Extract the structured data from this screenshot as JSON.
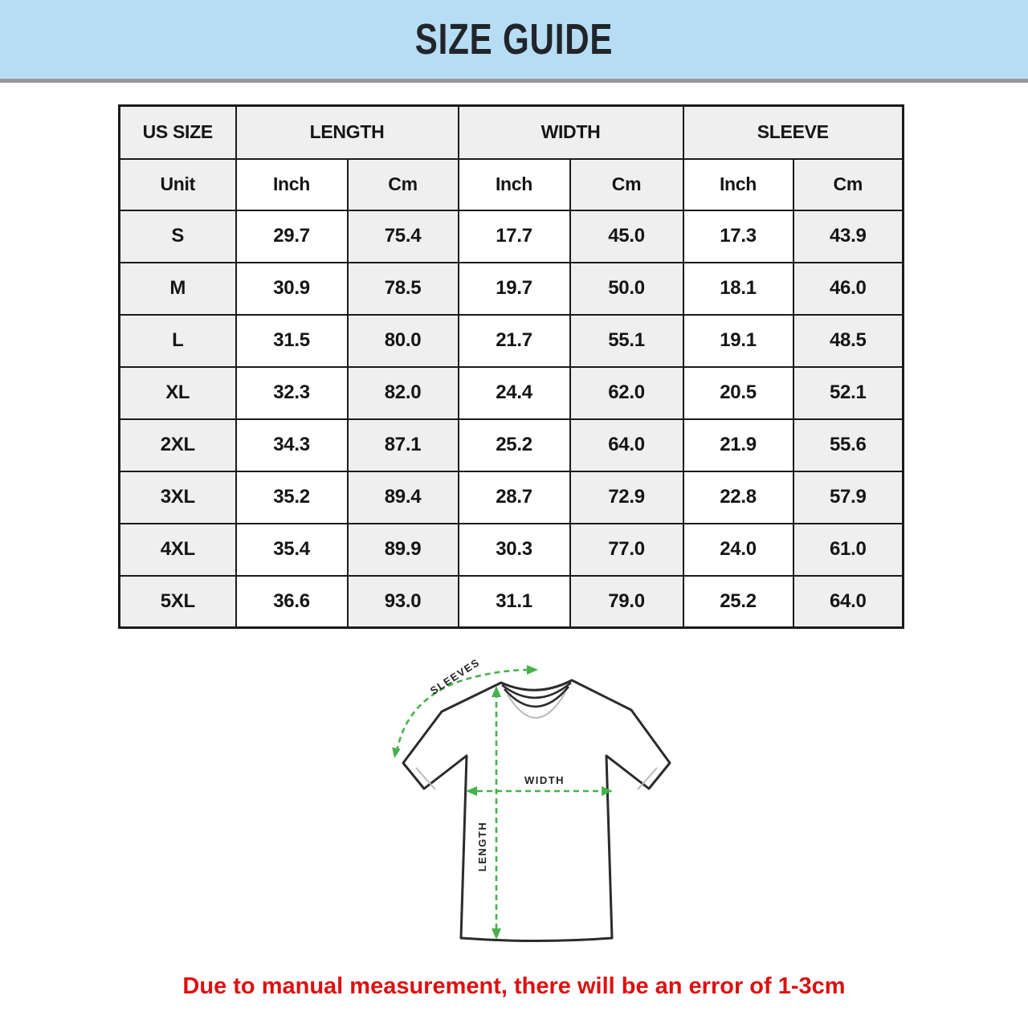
{
  "banner": {
    "title": "SIZE GUIDE",
    "bg_color": "#b7ddf5",
    "text_color": "#212529"
  },
  "table": {
    "columns": [
      "US SIZE",
      "LENGTH",
      "WIDTH",
      "SLEEVE"
    ],
    "unit_row": [
      "Unit",
      "Inch",
      "Cm",
      "Inch",
      "Cm",
      "Inch",
      "Cm"
    ],
    "shade_color": "#efefef",
    "border_color": "#1b1b1b",
    "rows": [
      {
        "size": "S",
        "values": [
          "29.7",
          "75.4",
          "17.7",
          "45.0",
          "17.3",
          "43.9"
        ]
      },
      {
        "size": "M",
        "values": [
          "30.9",
          "78.5",
          "19.7",
          "50.0",
          "18.1",
          "46.0"
        ]
      },
      {
        "size": "L",
        "values": [
          "31.5",
          "80.0",
          "21.7",
          "55.1",
          "19.1",
          "48.5"
        ]
      },
      {
        "size": "XL",
        "values": [
          "32.3",
          "82.0",
          "24.4",
          "62.0",
          "20.5",
          "52.1"
        ]
      },
      {
        "size": "2XL",
        "values": [
          "34.3",
          "87.1",
          "25.2",
          "64.0",
          "21.9",
          "55.6"
        ]
      },
      {
        "size": "3XL",
        "values": [
          "35.2",
          "89.4",
          "28.7",
          "72.9",
          "22.8",
          "57.9"
        ]
      },
      {
        "size": "4XL",
        "values": [
          "35.4",
          "89.9",
          "30.3",
          "77.0",
          "24.0",
          "61.0"
        ]
      },
      {
        "size": "5XL",
        "values": [
          "36.6",
          "93.0",
          "31.1",
          "79.0",
          "25.2",
          "64.0"
        ]
      }
    ]
  },
  "diagram": {
    "sleeves_label": "SLEEVES",
    "width_label": "WIDTH",
    "length_label": "LENGTH",
    "arrow_color": "#46b14b",
    "outline_color": "#2b2b2b"
  },
  "footer": {
    "note": "Due to manual measurement, there will be an error of 1-3cm",
    "color": "#df0f0f"
  }
}
